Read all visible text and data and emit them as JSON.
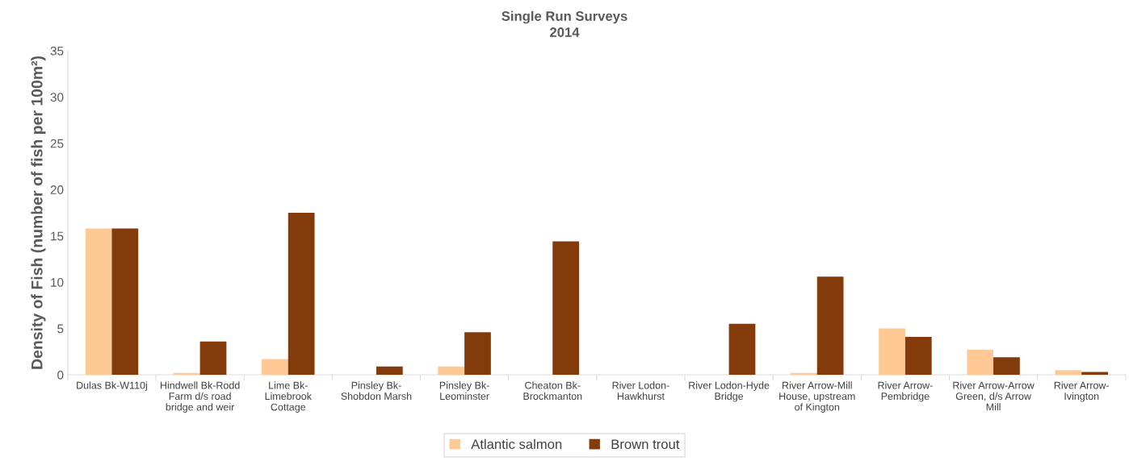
{
  "chart_data": {
    "type": "bar",
    "title": "Single Run Surveys",
    "subtitle": "2014",
    "ylabel": "Density of Fish (number of fish per 100m²)",
    "categories": [
      "Dulas Bk-W110j",
      "Hindwell Bk-Rodd\nFarm d/s road\nbridge and weir",
      "Lime Bk-\nLimebrook\nCottage",
      "Pinsley Bk-\nShobdon Marsh",
      "Pinsley Bk-\nLeominster",
      "Cheaton Bk-\nBrockmanton",
      "River Lodon-\nHawkhurst",
      "River Lodon-Hyde\nBridge",
      "River Arrow-Mill\nHouse, upstream\nof Kington",
      "River Arrow-\nPembridge",
      "River Arrow-Arrow\nGreen, d/s Arrow\nMill",
      "River Arrow-\nIvington"
    ],
    "series": [
      {
        "name": "Atlantic salmon",
        "color": "#fec994",
        "values": [
          15.8,
          0.2,
          1.7,
          0,
          0.9,
          0,
          0,
          0,
          0.2,
          5.0,
          2.7,
          0.5
        ]
      },
      {
        "name": "Brown trout",
        "color": "#843b0c",
        "values": [
          15.8,
          3.6,
          17.5,
          0.9,
          4.6,
          14.4,
          0,
          5.5,
          10.6,
          4.1,
          1.9,
          0.3
        ]
      }
    ],
    "ylim": [
      0,
      35
    ],
    "yticks": [
      0,
      5,
      10,
      15,
      20,
      25,
      30,
      35
    ],
    "grid": false,
    "legend": "bottom"
  }
}
